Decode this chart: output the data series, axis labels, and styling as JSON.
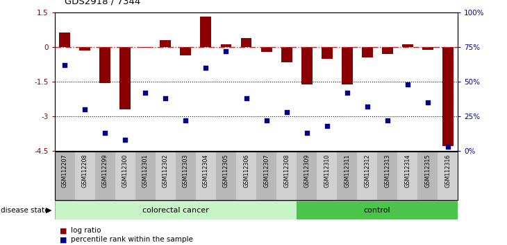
{
  "title": "GDS2918 / 7344",
  "samples": [
    "GSM112207",
    "GSM112208",
    "GSM112299",
    "GSM112300",
    "GSM112301",
    "GSM112302",
    "GSM112303",
    "GSM112304",
    "GSM112305",
    "GSM112306",
    "GSM112307",
    "GSM112308",
    "GSM112309",
    "GSM112310",
    "GSM112311",
    "GSM112312",
    "GSM112313",
    "GSM112314",
    "GSM112315",
    "GSM112316"
  ],
  "log_ratio": [
    0.62,
    -0.15,
    -1.58,
    -2.72,
    -0.05,
    0.28,
    -0.38,
    1.32,
    0.12,
    0.38,
    -0.22,
    -0.68,
    -1.62,
    -0.52,
    -1.62,
    -0.45,
    -0.32,
    0.12,
    -0.12,
    -4.3
  ],
  "percentile": [
    62,
    30,
    13,
    8,
    42,
    38,
    22,
    60,
    72,
    38,
    22,
    28,
    13,
    18,
    42,
    32,
    22,
    48,
    35,
    3
  ],
  "colorectal_count": 12,
  "control_count": 8,
  "bar_color": "#8B0000",
  "dot_color": "#00008B",
  "colorectal_facecolor": "#C8F5C8",
  "control_facecolor": "#4CC44C",
  "hline_color": "#CC2222",
  "left_tick_labels": [
    "1.5",
    "0",
    "-1.5",
    "-3",
    "-4.5"
  ],
  "left_tick_vals": [
    1.5,
    0,
    -1.5,
    -3,
    -4.5
  ],
  "right_tick_labels": [
    "100%",
    "75%",
    "50%",
    "25%",
    "0%"
  ],
  "right_tick_vals": [
    100,
    75,
    50,
    25,
    0
  ]
}
